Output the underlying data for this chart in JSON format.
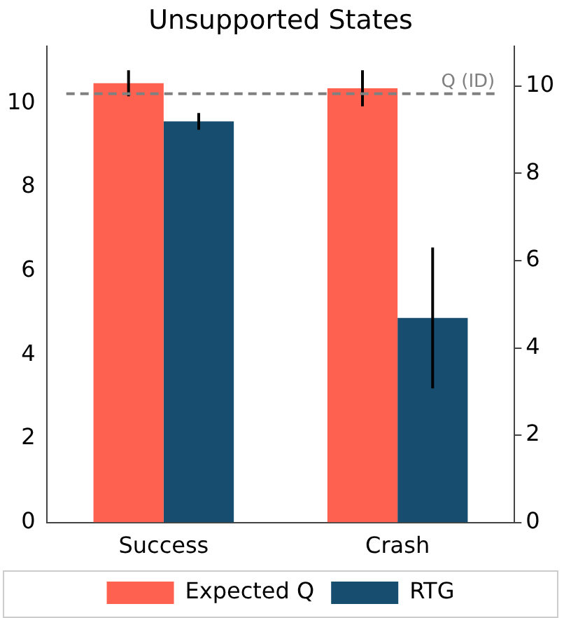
{
  "chart_data": {
    "type": "bar",
    "title": "Unsupported States",
    "categories": [
      "Success",
      "Crash"
    ],
    "series": [
      {
        "name": "Expected Q",
        "color": "#ff6150",
        "values": [
          10.48,
          10.36
        ],
        "errors": [
          0.31,
          0.43
        ]
      },
      {
        "name": "RTG",
        "color": "#174d6e",
        "values": [
          9.57,
          4.88
        ],
        "errors": [
          0.2,
          1.68
        ]
      }
    ],
    "ylim": [
      0,
      11.37
    ],
    "yticks": [
      0,
      2,
      4,
      6,
      8,
      10
    ],
    "y2lim": [
      0,
      10.92
    ],
    "y2ticks": [
      0,
      2,
      4,
      6,
      8,
      10
    ],
    "ref_lines": [
      {
        "axis": "y",
        "value": 10.23,
        "label": "Q (ID)",
        "color": "#808080",
        "line_style": "dashed"
      }
    ],
    "grid": false,
    "legend": "bottom"
  }
}
